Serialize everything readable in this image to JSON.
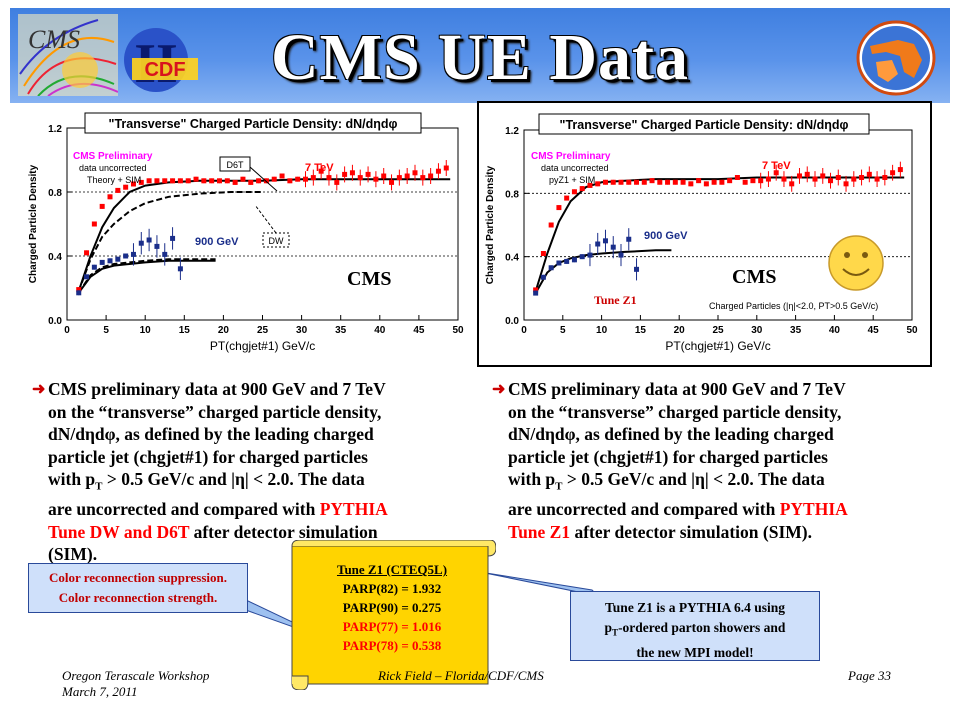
{
  "slide": {
    "title": "CMS UE Data",
    "logo_cms": "CMS",
    "logo_cdf": "CDF",
    "logo_cdf_roman": "II"
  },
  "left_text": {
    "lines": [
      "CMS preliminary data at  900 GeV and 7 TeV",
      "on the “transverse” charged particle density,",
      "dN/dηdφ, as defined by the leading charged",
      "particle jet (chgjet#1) for charged particles",
      "with p",
      " > 0.5 GeV/c and |η| < 2.0.  The data",
      "are uncorrected and compared with ",
      "PYTHIA",
      "Tune DW and D6T",
      " after detector simulation",
      "(SIM)."
    ],
    "sub_T": "T"
  },
  "right_text": {
    "lines": [
      "CMS preliminary data at  900 GeV and 7 TeV",
      "on the “transverse” charged particle density,",
      "dN/dηdφ, as defined by the leading charged",
      "particle jet (chgjet#1) for charged particles",
      "with p",
      " > 0.5 GeV/c and |η| < 2.0.  The data",
      "are uncorrected and compared with ",
      "PYTHIA",
      "Tune Z1",
      " after detector simulation (SIM)."
    ],
    "sub_T": "T"
  },
  "callout_color": {
    "line1": "Color reconnection suppression.",
    "line2": "Color reconnection strength."
  },
  "scroll": {
    "title": "Tune Z1 (CTEQ5L)",
    "rows": [
      {
        "text": "PARP(82) = 1.932",
        "color": "#000000"
      },
      {
        "text": "PARP(90) = 0.275",
        "color": "#000000"
      },
      {
        "text": "PARP(77) = 1.016",
        "color": "#ff0000"
      },
      {
        "text": "PARP(78) = 0.538",
        "color": "#ff0000"
      }
    ]
  },
  "callout_z1": {
    "line1": "Tune Z1 is a PYTHIA 6.4 using",
    "line2a": "p",
    "line2sub": "T",
    "line2b": "-ordered parton showers and",
    "line3": "the new MPI model!"
  },
  "footer": {
    "left1": "Oregon Terascale Workshop",
    "left2": "March 7, 2011",
    "center": "Rick Field – Florida/CDF/CMS",
    "right": "Page 33"
  },
  "colors": {
    "title_bg": "#4a86e6",
    "data_7tev": "#ff0000",
    "data_900gev": "#1a2e8a",
    "smiley": "#ffd84a"
  },
  "chart_data": [
    {
      "type": "scatter",
      "title": "\"Transverse\" Charged Particle Density: dN/dηdφ",
      "xlabel": "PT(chgjet#1) GeV/c",
      "ylabel": "Charged Particle Density",
      "xlim": [
        0,
        50
      ],
      "ylim": [
        0,
        1.2
      ],
      "xticks": [
        0,
        5,
        10,
        15,
        20,
        25,
        30,
        35,
        40,
        45,
        50
      ],
      "yticks": [
        0.0,
        0.4,
        0.8,
        1.2
      ],
      "ref_lines": [
        0.4,
        0.8
      ],
      "annotations": [
        "CMS Preliminary",
        "data uncorrected",
        "Theory + SIM",
        "7 TeV",
        "900 GeV",
        "D6T",
        "DW",
        "CMS"
      ],
      "series": [
        {
          "name": "7 TeV",
          "x": [
            1.5,
            2.5,
            3.5,
            4.5,
            5.5,
            6.5,
            7.5,
            8.5,
            9.5,
            10.5,
            11.5,
            12.5,
            13.5,
            14.5,
            15.5,
            16.5,
            17.5,
            18.5,
            19.5,
            20.5,
            21.5,
            22.5,
            23.5,
            24.5,
            25.5,
            26.5,
            27.5,
            28.5,
            29.5,
            30.5,
            31.5,
            32.5,
            33.5,
            34.5,
            35.5,
            36.5,
            37.5,
            38.5,
            39.5,
            40.5,
            41.5,
            42.5,
            43.5,
            44.5,
            45.5,
            46.5,
            47.5,
            48.5
          ],
          "y": [
            0.19,
            0.42,
            0.6,
            0.71,
            0.77,
            0.81,
            0.83,
            0.85,
            0.86,
            0.87,
            0.87,
            0.87,
            0.87,
            0.87,
            0.87,
            0.88,
            0.87,
            0.87,
            0.87,
            0.87,
            0.86,
            0.88,
            0.86,
            0.87,
            0.87,
            0.88,
            0.9,
            0.87,
            0.88,
            0.88,
            0.89,
            0.93,
            0.89,
            0.86,
            0.91,
            0.92,
            0.89,
            0.91,
            0.88,
            0.9,
            0.86,
            0.89,
            0.9,
            0.92,
            0.89,
            0.9,
            0.93,
            0.95
          ]
        },
        {
          "name": "900 GeV",
          "x": [
            1.5,
            2.5,
            3.5,
            4.5,
            5.5,
            6.5,
            7.5,
            8.5,
            9.5,
            10.5,
            11.5,
            12.5,
            13.5,
            14.5
          ],
          "y": [
            0.17,
            0.27,
            0.33,
            0.36,
            0.37,
            0.38,
            0.4,
            0.41,
            0.48,
            0.5,
            0.46,
            0.41,
            0.51,
            0.32
          ]
        },
        {
          "name": "D6T 7 TeV",
          "x": [
            1.5,
            3,
            4.5,
            6,
            8,
            10,
            13,
            17,
            21,
            25,
            30,
            35,
            40,
            45,
            49
          ],
          "y": [
            0.18,
            0.4,
            0.58,
            0.7,
            0.8,
            0.84,
            0.86,
            0.87,
            0.87,
            0.87,
            0.88,
            0.88,
            0.88,
            0.88,
            0.88
          ]
        },
        {
          "name": "DW 7 TeV",
          "x": [
            1.5,
            3,
            4.5,
            6,
            8,
            10,
            13,
            17,
            21,
            25
          ],
          "y": [
            0.18,
            0.38,
            0.52,
            0.6,
            0.68,
            0.73,
            0.77,
            0.79,
            0.8,
            0.8
          ]
        },
        {
          "name": "D6T 900 GeV",
          "x": [
            1.5,
            3,
            4.5,
            6,
            8,
            10,
            13,
            17,
            19
          ],
          "y": [
            0.17,
            0.27,
            0.32,
            0.34,
            0.35,
            0.36,
            0.37,
            0.37,
            0.37
          ]
        },
        {
          "name": "DW 900 GeV",
          "x": [
            1.5,
            3,
            4.5,
            6,
            8,
            10,
            13,
            17,
            19
          ],
          "y": [
            0.17,
            0.28,
            0.33,
            0.35,
            0.36,
            0.37,
            0.38,
            0.38,
            0.38
          ]
        }
      ]
    },
    {
      "type": "scatter",
      "title": "\"Transverse\" Charged Particle Density: dN/dηdφ",
      "xlabel": "PT(chgjet#1) GeV/c",
      "ylabel": "Charged Particle Density",
      "xlim": [
        0,
        50
      ],
      "ylim": [
        0,
        1.2
      ],
      "xticks": [
        0,
        5,
        10,
        15,
        20,
        25,
        30,
        35,
        40,
        45,
        50
      ],
      "yticks": [
        0.0,
        0.4,
        0.8,
        1.2
      ],
      "ref_lines": [
        0.4,
        0.8
      ],
      "annotations": [
        "CMS Preliminary",
        "data uncorrected",
        "pyZ1 + SIM",
        "7 TeV",
        "900 GeV",
        "CMS",
        "Tune Z1",
        "Charged Particles (|η|<2.0, PT>0.5 GeV/c)"
      ],
      "series": [
        {
          "name": "7 TeV",
          "x": [
            1.5,
            2.5,
            3.5,
            4.5,
            5.5,
            6.5,
            7.5,
            8.5,
            9.5,
            10.5,
            11.5,
            12.5,
            13.5,
            14.5,
            15.5,
            16.5,
            17.5,
            18.5,
            19.5,
            20.5,
            21.5,
            22.5,
            23.5,
            24.5,
            25.5,
            26.5,
            27.5,
            28.5,
            29.5,
            30.5,
            31.5,
            32.5,
            33.5,
            34.5,
            35.5,
            36.5,
            37.5,
            38.5,
            39.5,
            40.5,
            41.5,
            42.5,
            43.5,
            44.5,
            45.5,
            46.5,
            47.5,
            48.5
          ],
          "y": [
            0.19,
            0.42,
            0.6,
            0.71,
            0.77,
            0.81,
            0.83,
            0.85,
            0.86,
            0.87,
            0.87,
            0.87,
            0.87,
            0.87,
            0.87,
            0.88,
            0.87,
            0.87,
            0.87,
            0.87,
            0.86,
            0.88,
            0.86,
            0.87,
            0.87,
            0.88,
            0.9,
            0.87,
            0.88,
            0.88,
            0.89,
            0.93,
            0.89,
            0.86,
            0.91,
            0.92,
            0.89,
            0.91,
            0.88,
            0.9,
            0.86,
            0.89,
            0.9,
            0.92,
            0.89,
            0.9,
            0.93,
            0.95
          ]
        },
        {
          "name": "900 GeV",
          "x": [
            1.5,
            2.5,
            3.5,
            4.5,
            5.5,
            6.5,
            7.5,
            8.5,
            9.5,
            10.5,
            11.5,
            12.5,
            13.5,
            14.5
          ],
          "y": [
            0.17,
            0.27,
            0.33,
            0.36,
            0.37,
            0.38,
            0.4,
            0.41,
            0.48,
            0.5,
            0.46,
            0.41,
            0.51,
            0.32
          ]
        },
        {
          "name": "Z1 7 TeV",
          "x": [
            1.5,
            3,
            4.5,
            6,
            8,
            10,
            13,
            17,
            21,
            25,
            30,
            35,
            40,
            45,
            49
          ],
          "y": [
            0.18,
            0.42,
            0.62,
            0.75,
            0.84,
            0.87,
            0.88,
            0.89,
            0.89,
            0.89,
            0.9,
            0.9,
            0.9,
            0.9,
            0.9
          ]
        },
        {
          "name": "Z1 900 GeV",
          "x": [
            1.5,
            3,
            4.5,
            6,
            8,
            10,
            13,
            17,
            19
          ],
          "y": [
            0.17,
            0.3,
            0.36,
            0.39,
            0.41,
            0.42,
            0.43,
            0.44,
            0.44
          ]
        }
      ]
    }
  ]
}
